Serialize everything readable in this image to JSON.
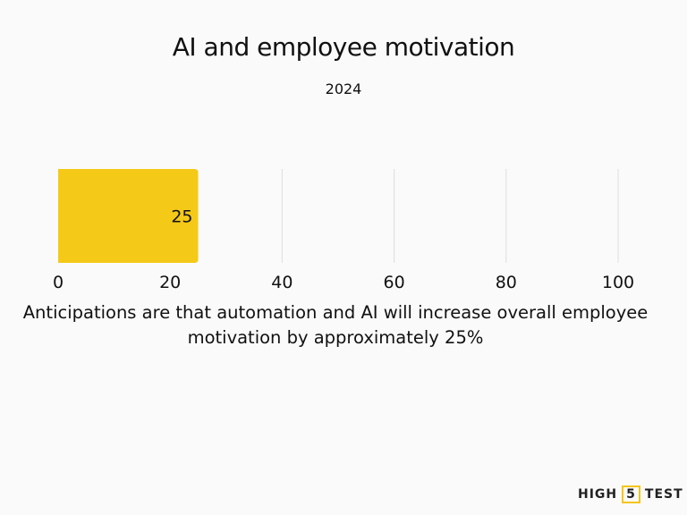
{
  "chart_data": {
    "type": "bar",
    "orientation": "horizontal",
    "title": "AI and employee motivation",
    "subtitle": "2024",
    "categories": [
      ""
    ],
    "values": [
      25
    ],
    "data_labels": [
      "25"
    ],
    "xlim": [
      0,
      100
    ],
    "xticks": [
      0,
      20,
      40,
      60,
      80,
      100
    ],
    "grid": true,
    "bar_color": "#f5c918",
    "caption": "Anticipations are that automation and AI will increase overall employee motivation by approximately 25%"
  },
  "logo": {
    "left": "HIGH",
    "mid": "5",
    "right": "TEST"
  }
}
